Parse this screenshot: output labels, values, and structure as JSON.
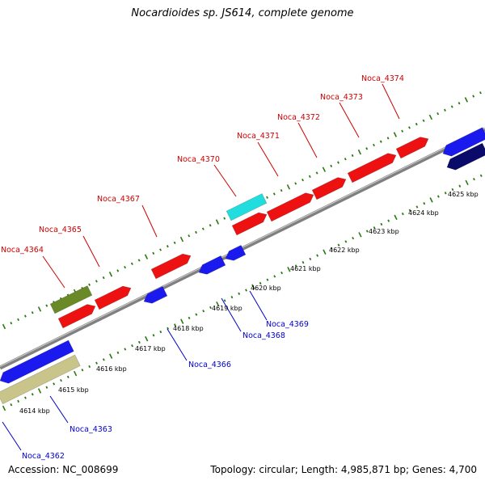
{
  "title": "Nocardioides sp. JS614, complete genome",
  "footer": {
    "accession": "Accession: NC_008699",
    "topology": "Topology: circular; Length: 4,985,871 bp; Genes: 4,700"
  },
  "colors": {
    "forward_label": "#cc0000",
    "reverse_label": "#0000cc",
    "backbone": "#808080",
    "ticks": "#2a7a10"
  },
  "kbp_labels": [
    "4614 kbp",
    "4615 kbp",
    "4616 kbp",
    "4617 kbp",
    "4618 kbp",
    "4619 kbp",
    "4620 kbp",
    "4621 kbp",
    "4622 kbp",
    "4623 kbp",
    "4624 kbp",
    "4625 kbp"
  ],
  "upper_gene_labels": [
    "Noca_4364",
    "Noca_4365",
    "Noca_4367",
    "Noca_4370",
    "Noca_4371",
    "Noca_4372",
    "Noca_4373",
    "Noca_4374"
  ],
  "lower_gene_labels": [
    "Noca_4362",
    "Noca_4363",
    "Noca_4366",
    "Noca_4368",
    "Noca_4369"
  ]
}
